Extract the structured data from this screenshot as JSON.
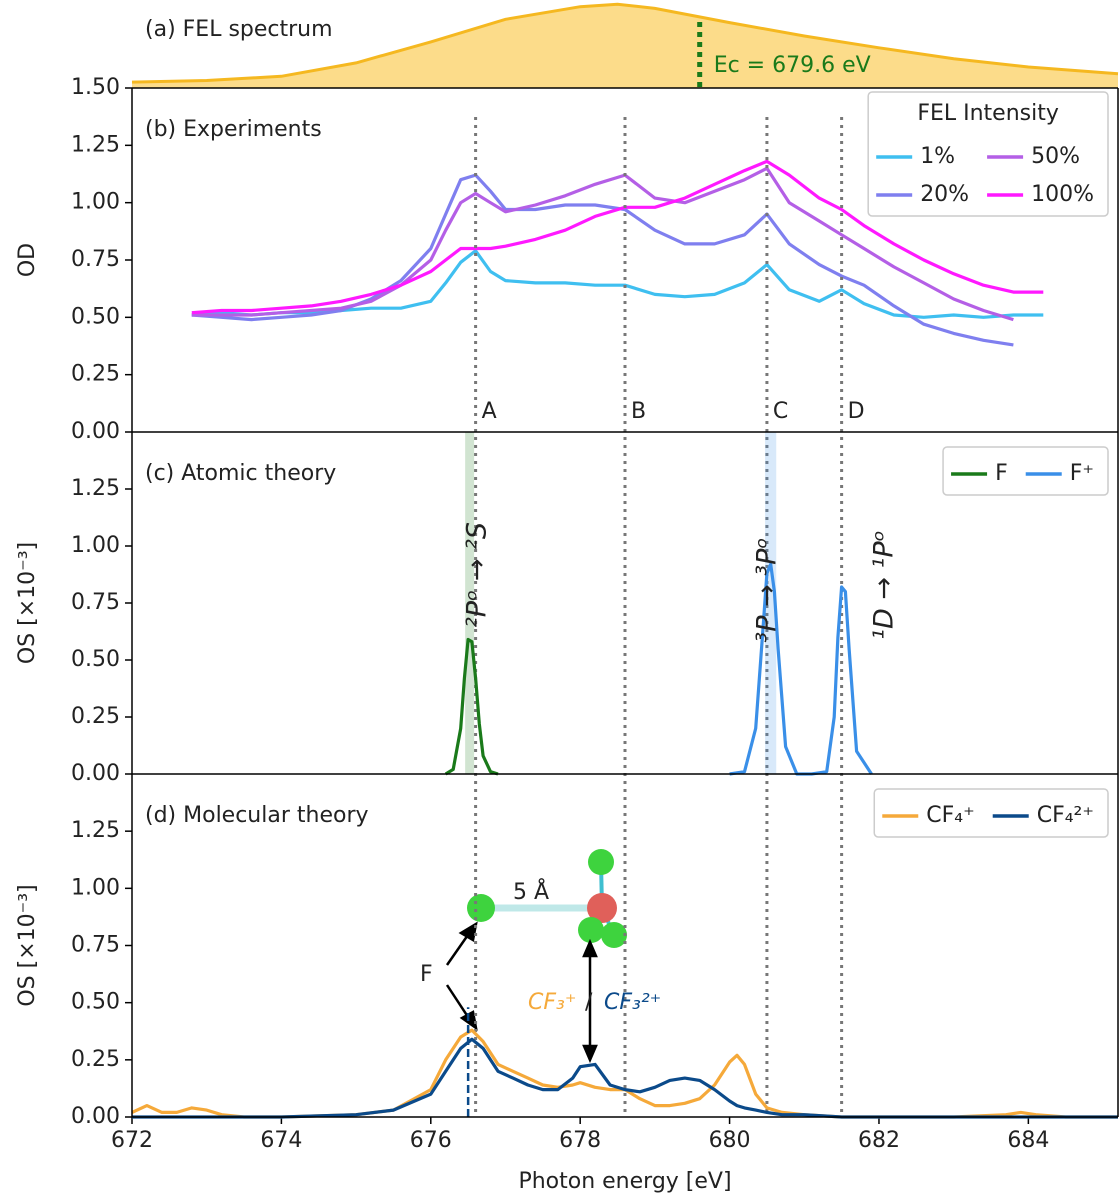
{
  "chart_data": [
    {
      "type": "area",
      "title": "(a) FEL spectrum",
      "color": "#f5b820",
      "fill": "#fcdc8a",
      "x": [
        672,
        673,
        674,
        675,
        676,
        677,
        678,
        678.5,
        679,
        680,
        681,
        682,
        683,
        684,
        685.2
      ],
      "values": [
        0.07,
        0.09,
        0.14,
        0.3,
        0.55,
        0.82,
        0.97,
        1.0,
        0.95,
        0.78,
        0.62,
        0.48,
        0.35,
        0.25,
        0.17
      ],
      "xlim": [
        672,
        685.2
      ],
      "ylim": [
        0,
        1.05
      ],
      "annotation": {
        "x": 679.6,
        "text": "Ec = 679.6 eV",
        "color": "#1a7a1a"
      }
    },
    {
      "type": "line",
      "title": "(b) Experiments",
      "ylabel": "OD",
      "x": [
        672.8,
        673.2,
        673.6,
        674.0,
        674.4,
        674.8,
        675.2,
        675.6,
        676.0,
        676.2,
        676.4,
        676.6,
        676.8,
        677.0,
        677.4,
        677.8,
        678.2,
        678.6,
        679.0,
        679.4,
        679.8,
        680.2,
        680.5,
        680.8,
        681.2,
        681.5,
        681.8,
        682.2,
        682.6,
        683.0,
        683.4,
        683.8,
        684.2
      ],
      "series": [
        {
          "name": "1%",
          "color": "#3fbff0",
          "values": [
            0.51,
            0.52,
            0.51,
            0.52,
            0.52,
            0.53,
            0.54,
            0.54,
            0.57,
            0.65,
            0.74,
            0.79,
            0.7,
            0.66,
            0.65,
            0.65,
            0.64,
            0.64,
            0.6,
            0.59,
            0.6,
            0.65,
            0.73,
            0.62,
            0.57,
            0.62,
            0.56,
            0.51,
            0.5,
            0.51,
            0.5,
            0.51,
            0.51
          ]
        },
        {
          "name": "20%",
          "color": "#7f7fef",
          "values": [
            0.51,
            0.5,
            0.49,
            0.5,
            0.51,
            0.53,
            0.58,
            0.66,
            0.8,
            0.95,
            1.1,
            1.12,
            1.05,
            0.97,
            0.97,
            0.99,
            0.99,
            0.97,
            0.88,
            0.82,
            0.82,
            0.86,
            0.95,
            0.82,
            0.73,
            0.68,
            0.64,
            0.55,
            0.47,
            0.43,
            0.4,
            0.38,
            null
          ]
        },
        {
          "name": "50%",
          "color": "#b45fe6",
          "values": [
            0.51,
            0.51,
            0.51,
            0.52,
            0.53,
            0.54,
            0.57,
            0.64,
            0.75,
            0.88,
            1.0,
            1.04,
            1.0,
            0.96,
            0.99,
            1.03,
            1.08,
            1.12,
            1.02,
            1.0,
            1.05,
            1.1,
            1.15,
            1.0,
            0.92,
            0.86,
            0.8,
            0.72,
            0.65,
            0.58,
            0.53,
            0.49,
            null
          ]
        },
        {
          "name": "100%",
          "color": "#ff19ff",
          "values": [
            0.52,
            0.53,
            0.53,
            0.54,
            0.55,
            0.57,
            0.6,
            0.64,
            0.7,
            0.75,
            0.8,
            0.8,
            0.8,
            0.81,
            0.84,
            0.88,
            0.94,
            0.98,
            0.98,
            1.02,
            1.08,
            1.14,
            1.18,
            1.12,
            1.02,
            0.97,
            0.9,
            0.82,
            0.75,
            0.69,
            0.64,
            0.61,
            0.61
          ]
        }
      ],
      "xlim": [
        672,
        685.2
      ],
      "ylim": [
        0,
        1.5
      ],
      "yticks": [
        {
          "value": 0,
          "label": "0.00"
        },
        0.25,
        {
          "value": 0.5,
          "label": "0.50"
        },
        0.75,
        {
          "value": 1,
          "label": "1.00"
        },
        1.25,
        {
          "value": 1.5,
          "label": "1.50"
        }
      ],
      "legend": "upper right",
      "legend_title": "FEL Intensity",
      "legend_columns": 2,
      "reference_lines": {
        "x": [
          676.6,
          678.6,
          680.5,
          681.5
        ],
        "labels": [
          "A",
          "B",
          "C",
          "D"
        ],
        "color": "#777777"
      }
    },
    {
      "type": "line",
      "title": "(c) Atomic theory",
      "ylabel": "OS [×10⁻³]",
      "series": [
        {
          "name": "F",
          "color": "#1a7a1a",
          "x": [
            676.2,
            676.3,
            676.4,
            676.45,
            676.5,
            676.55,
            676.6,
            676.65,
            676.7,
            676.8,
            676.9
          ],
          "values": [
            0,
            0.02,
            0.2,
            0.42,
            0.59,
            0.58,
            0.42,
            0.22,
            0.08,
            0.01,
            0
          ]
        },
        {
          "name": "F⁺",
          "color": "#3a8fe8",
          "x": [
            680.0,
            680.2,
            680.35,
            680.45,
            680.5,
            680.55,
            680.6,
            680.65,
            680.75,
            680.9,
            681.1,
            681.3,
            681.4,
            681.45,
            681.5,
            681.55,
            681.6,
            681.7,
            681.9
          ],
          "values": [
            0,
            0.01,
            0.2,
            0.65,
            0.88,
            0.92,
            0.8,
            0.55,
            0.12,
            0,
            0,
            0.01,
            0.25,
            0.6,
            0.82,
            0.8,
            0.55,
            0.1,
            0
          ]
        }
      ],
      "bands": [
        {
          "x": 676.52,
          "width": 0.12,
          "color": "#1a7a1a"
        },
        {
          "x": 680.55,
          "width": 0.15,
          "color": "#3a8fe8"
        }
      ],
      "annotations": [
        "²Pᵒ → ²S",
        "³P → ³Pᵒ",
        "¹D → ¹Pᵒ"
      ],
      "xlim": [
        672,
        685.2
      ],
      "ylim": [
        0,
        1.5
      ],
      "yticks": [
        {
          "value": 0,
          "label": "0.00"
        },
        0.25,
        {
          "value": 0.5,
          "label": "0.50"
        },
        0.75,
        {
          "value": 1,
          "label": "1.00"
        },
        1.25
      ],
      "legend": "upper right",
      "legend_columns": 2
    },
    {
      "type": "line",
      "title": "(d) Molecular theory",
      "ylabel": "OS [×10⁻³]",
      "xlabel": "Photon energy [eV]",
      "x": [
        672,
        672.2,
        672.4,
        672.6,
        672.8,
        673,
        673.2,
        673.5,
        674,
        675,
        675.5,
        676,
        676.2,
        676.4,
        676.55,
        676.7,
        676.9,
        677.1,
        677.3,
        677.5,
        677.7,
        677.9,
        678,
        678.2,
        678.4,
        678.6,
        678.8,
        679,
        679.2,
        679.4,
        679.6,
        679.8,
        680,
        680.1,
        680.2,
        680.35,
        680.5,
        680.7,
        681,
        681.5,
        682,
        683,
        683.7,
        683.9,
        684.1,
        684.5,
        685.2
      ],
      "series": [
        {
          "name": "CF₄⁺",
          "color": "#f5a93a",
          "values": [
            0.02,
            0.05,
            0.02,
            0.02,
            0.04,
            0.03,
            0.01,
            0,
            0,
            0.01,
            0.03,
            0.12,
            0.25,
            0.35,
            0.38,
            0.33,
            0.23,
            0.2,
            0.17,
            0.14,
            0.13,
            0.14,
            0.15,
            0.13,
            0.12,
            0.12,
            0.08,
            0.05,
            0.05,
            0.06,
            0.08,
            0.14,
            0.24,
            0.27,
            0.23,
            0.1,
            0.04,
            0.02,
            0.01,
            0,
            0,
            0,
            0.01,
            0.02,
            0.01,
            0,
            0
          ]
        },
        {
          "name": "CF₄²⁺",
          "color": "#0b4a8a",
          "values": [
            0,
            0,
            0,
            0,
            0,
            0,
            0,
            0,
            0,
            0.01,
            0.03,
            0.1,
            0.2,
            0.3,
            0.34,
            0.3,
            0.2,
            0.17,
            0.14,
            0.12,
            0.12,
            0.17,
            0.22,
            0.23,
            0.14,
            0.12,
            0.11,
            0.13,
            0.16,
            0.17,
            0.16,
            0.12,
            0.07,
            0.05,
            0.04,
            0.03,
            0.02,
            0.01,
            0.01,
            0,
            0,
            0,
            0,
            0,
            0,
            0,
            0
          ]
        }
      ],
      "dashed_line": {
        "x": 676.5,
        "ymax": 0.48,
        "color": "#0b4a8a"
      },
      "annotations": [
        "F",
        "5 Å",
        "CF₃⁺",
        "/",
        "CF₃²⁺"
      ],
      "xlim": [
        672,
        685.2
      ],
      "ylim": [
        0,
        1.5
      ],
      "yticks": [
        {
          "value": 0,
          "label": "0.00"
        },
        0.25,
        {
          "value": 0.5,
          "label": "0.50"
        },
        0.75,
        {
          "value": 1,
          "label": "1.00"
        },
        1.25
      ],
      "xticks": [
        672,
        674,
        676,
        678,
        680,
        682,
        684
      ],
      "legend": "upper right",
      "legend_columns": 2
    }
  ]
}
